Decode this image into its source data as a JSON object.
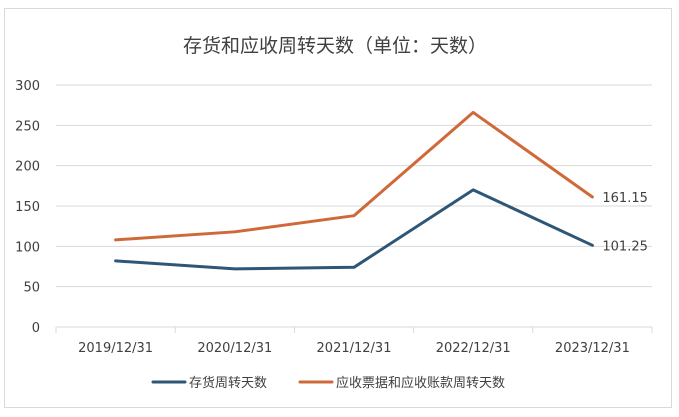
{
  "chart_data": {
    "type": "line",
    "title": "存货和应收周转天数（单位：天数）",
    "categories": [
      "2019/12/31",
      "2020/12/31",
      "2021/12/31",
      "2022/12/31",
      "2023/12/31"
    ],
    "series": [
      {
        "name": "存货周转天数",
        "color": "#2e5676",
        "values": [
          82,
          72,
          74,
          170,
          101.25
        ]
      },
      {
        "name": "应收票据和应收账款周转天数",
        "color": "#d0693a",
        "values": [
          108,
          118,
          138,
          266,
          161.15
        ]
      }
    ],
    "data_labels": [
      {
        "series": 0,
        "index": 4,
        "text": "101.25"
      },
      {
        "series": 1,
        "index": 4,
        "text": "161.15"
      }
    ],
    "ylim": [
      0,
      300
    ],
    "yticks": [
      "0",
      "50",
      "100",
      "150",
      "200",
      "250",
      "300"
    ],
    "grid": true,
    "legend_position": "bottom"
  }
}
